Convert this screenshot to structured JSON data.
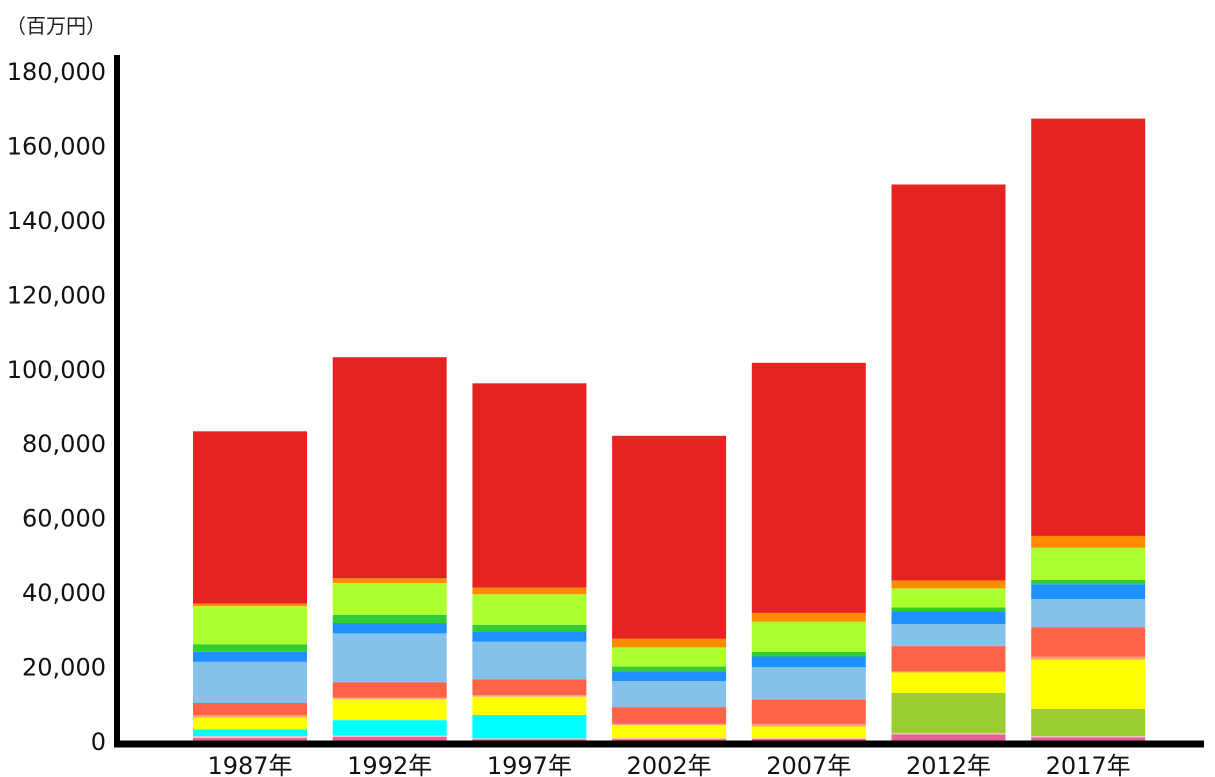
{
  "chart_data": {
    "type": "bar",
    "stacked": true,
    "unit_label": "（百万円）",
    "categories": [
      "1987年",
      "1992年",
      "1997年",
      "2002年",
      "2007年",
      "2012年",
      "2017年"
    ],
    "yticks": [
      "0",
      "20,000",
      "40,000",
      "60,000",
      "80,000",
      "100,000",
      "120,000",
      "140,000",
      "160,000",
      "180,000"
    ],
    "ylim": [
      0,
      180000
    ],
    "grid": false,
    "series": [
      {
        "color": "#e8609a",
        "values": [
          800,
          1100,
          400,
          500,
          600,
          1800,
          1000
        ]
      },
      {
        "color": "#ffc0c0",
        "values": [
          500,
          400,
          300,
          300,
          300,
          300,
          300
        ]
      },
      {
        "color": "#00ffff",
        "values": [
          1800,
          4100,
          6300,
          0,
          0,
          0,
          0
        ]
      },
      {
        "color": "#9acd32",
        "values": [
          0,
          0,
          0,
          0,
          0,
          10800,
          7300
        ]
      },
      {
        "color": "#ffff00",
        "values": [
          3200,
          5700,
          4900,
          3500,
          3000,
          5500,
          13300
        ]
      },
      {
        "color": "#ffa07a",
        "values": [
          600,
          400,
          400,
          300,
          700,
          300,
          800
        ]
      },
      {
        "color": "#ff6347",
        "values": [
          3300,
          4100,
          4300,
          4500,
          6600,
          6800,
          7800
        ]
      },
      {
        "color": "#85c1e9",
        "values": [
          11100,
          13100,
          10100,
          7000,
          8600,
          5900,
          7600
        ]
      },
      {
        "color": "#1e90ff",
        "values": [
          2700,
          2800,
          2600,
          2600,
          2900,
          3500,
          4000
        ]
      },
      {
        "color": "#32cd32",
        "values": [
          2000,
          2200,
          1900,
          1300,
          1200,
          1000,
          1200
        ]
      },
      {
        "color": "#adff2f",
        "values": [
          10200,
          8500,
          8200,
          5100,
          8200,
          5100,
          8600
        ]
      },
      {
        "color": "#ff8c00",
        "values": [
          700,
          1300,
          1800,
          2400,
          2300,
          2100,
          3200
        ]
      },
      {
        "color": "#e52421",
        "values": [
          46300,
          59400,
          54900,
          54500,
          67200,
          106400,
          112100
        ]
      }
    ]
  }
}
